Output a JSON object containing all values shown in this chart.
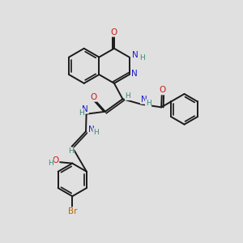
{
  "bg_color": "#e0e0e0",
  "bond_color": "#1a1a1a",
  "bond_width": 1.4,
  "atom_colors": {
    "C": "#1a1a1a",
    "H": "#3a8a7a",
    "N": "#1a1acc",
    "O": "#cc1a1a",
    "Br": "#bb6600"
  },
  "fs": 7.5,
  "fsh": 6.5
}
